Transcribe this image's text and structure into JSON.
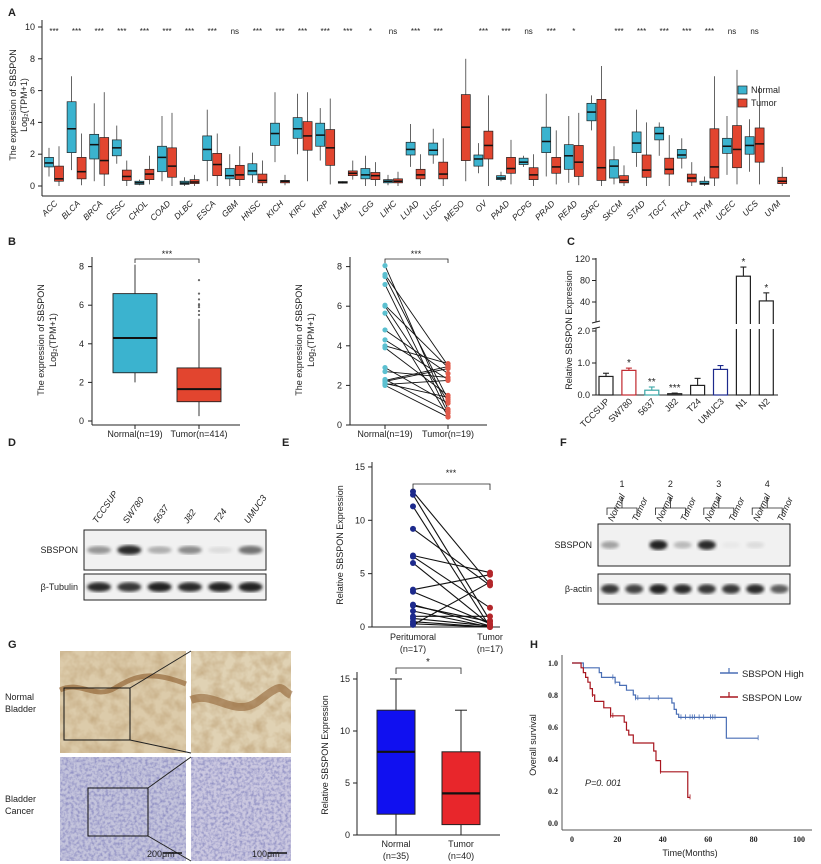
{
  "panel_labels": [
    "A",
    "B",
    "C",
    "D",
    "E",
    "F",
    "G",
    "H"
  ],
  "colors": {
    "normal": "#3bb3cf",
    "tumor": "#e2452f",
    "navy": "#1d2a8c",
    "dark_red": "#b3262a",
    "km_high": "#4a6fb5",
    "km_low": "#a8161f",
    "g_normal": "#1010f0",
    "g_tumor": "#e8262b",
    "cell_teal": "#3aa6a6"
  },
  "chart_data": [
    {
      "panel": "A",
      "type": "box",
      "ylabel": [
        "The expression of SBSPON",
        "Log₂(TPM+1)"
      ],
      "ylim": [
        0,
        10
      ],
      "yticks": [
        "0",
        "2",
        "4",
        "6",
        "8",
        "10"
      ],
      "legend": {
        "position": "right",
        "items": [
          "Normal",
          "Tumor"
        ]
      },
      "categories": [
        "ACC",
        "BLCA",
        "BRCA",
        "CESC",
        "CHOL",
        "COAD",
        "DLBC",
        "ESCA",
        "GBM",
        "HNSC",
        "KICH",
        "KIRC",
        "KIRP",
        "LAML",
        "LGG",
        "LIHC",
        "LUAD",
        "LUSC",
        "MESO",
        "OV",
        "PAAD",
        "PCPG",
        "PRAD",
        "READ",
        "SARC",
        "SKCM",
        "STAD",
        "TGCT",
        "THCA",
        "THYM",
        "UCEC",
        "UCS",
        "UVM"
      ],
      "significance": [
        "***",
        "***",
        "***",
        "***",
        "***",
        "***",
        "***",
        "***",
        "ns",
        "***",
        "***",
        "***",
        "***",
        "***",
        "*",
        "ns",
        "***",
        "***",
        "",
        "***",
        "***",
        "ns",
        "***",
        "*",
        "",
        "***",
        "***",
        "***",
        "***",
        "***",
        "ns",
        "ns",
        ""
      ],
      "box_format": [
        "whisker_low",
        "q1",
        "median",
        "q3",
        "whisker_high"
      ],
      "normal": [
        [
          0.6,
          1.2,
          1.45,
          1.8,
          2.4
        ],
        [
          1.0,
          2.1,
          3.6,
          5.3,
          6.9
        ],
        [
          0.3,
          1.7,
          2.6,
          3.25,
          5.2
        ],
        [
          1.4,
          1.9,
          2.4,
          2.9,
          3.8
        ],
        [
          0.05,
          0.1,
          0.2,
          0.3,
          0.4
        ],
        [
          0.3,
          0.9,
          1.8,
          2.5,
          4.4
        ],
        [
          0,
          0.1,
          0.18,
          0.3,
          0.55
        ],
        [
          0.3,
          1.6,
          2.3,
          3.15,
          4.8
        ],
        [
          0,
          0.45,
          0.65,
          1.1,
          2.0
        ],
        [
          0.2,
          0.7,
          0.95,
          1.4,
          2.1
        ],
        [
          1.5,
          2.55,
          3.3,
          3.95,
          5.9
        ],
        [
          2.0,
          3.0,
          3.6,
          4.3,
          5.8
        ],
        [
          1.6,
          2.5,
          3.2,
          3.95,
          4.9
        ],
        [
          0.15,
          0.18,
          0.22,
          0.28,
          0.3
        ],
        [
          0,
          0.45,
          0.7,
          1.1,
          1.9
        ],
        [
          0.05,
          0.2,
          0.3,
          0.4,
          0.7
        ],
        [
          1.2,
          1.95,
          2.3,
          2.75,
          3.9
        ],
        [
          1.4,
          1.95,
          2.25,
          2.7,
          3.6
        ],
        null,
        [
          0.8,
          1.25,
          1.7,
          1.95,
          2.7
        ],
        [
          0.3,
          0.4,
          0.5,
          0.65,
          0.9
        ],
        [
          1.2,
          1.35,
          1.5,
          1.75,
          1.9
        ],
        [
          0.6,
          2.1,
          2.8,
          3.7,
          5.8
        ],
        [
          0.2,
          1.05,
          1.9,
          2.6,
          4.4
        ],
        [
          3.5,
          4.1,
          4.65,
          5.2,
          5.7
        ],
        [
          0.1,
          0.5,
          1.25,
          1.65,
          2.5
        ],
        [
          1.2,
          2.1,
          2.7,
          3.4,
          4.8
        ],
        [
          1.9,
          2.9,
          3.3,
          3.7,
          4.0
        ],
        [
          1.1,
          1.75,
          1.95,
          2.3,
          3.0
        ],
        [
          0,
          0.1,
          0.15,
          0.3,
          0.6
        ],
        [
          0.7,
          2.05,
          2.5,
          3.0,
          4.4
        ],
        [
          0.9,
          2.0,
          2.55,
          3.1,
          4.2
        ],
        null
      ],
      "tumor": [
        [
          0,
          0.3,
          0.45,
          1.25,
          2.5
        ],
        [
          0.05,
          0.45,
          0.9,
          1.8,
          3.3
        ],
        [
          0,
          0.75,
          1.6,
          3.05,
          5.9
        ],
        [
          0,
          0.35,
          0.6,
          1.0,
          1.6
        ],
        [
          0.1,
          0.4,
          0.75,
          1.05,
          1.9
        ],
        [
          0,
          0.55,
          1.25,
          2.4,
          4.6
        ],
        [
          0,
          0.15,
          0.25,
          0.4,
          0.7
        ],
        [
          0,
          0.65,
          1.35,
          2.05,
          3.3
        ],
        [
          0,
          0.4,
          0.7,
          1.3,
          2.5
        ],
        [
          0,
          0.2,
          0.35,
          0.75,
          1.6
        ],
        [
          0.05,
          0.2,
          0.3,
          0.35,
          0.7
        ],
        [
          0.3,
          2.25,
          3.15,
          4.05,
          5.9
        ],
        [
          0.1,
          1.3,
          2.4,
          3.55,
          5.5
        ],
        [
          0.4,
          0.65,
          0.8,
          0.95,
          1.6
        ],
        [
          0,
          0.4,
          0.65,
          0.85,
          1.5
        ],
        [
          0,
          0.2,
          0.3,
          0.45,
          0.9
        ],
        [
          0,
          0.45,
          0.7,
          1.05,
          2.0
        ],
        [
          0,
          0.45,
          0.75,
          1.5,
          3.0
        ],
        [
          0.3,
          1.6,
          3.7,
          5.75,
          8.0
        ],
        [
          0,
          1.7,
          2.55,
          3.45,
          5.7
        ],
        [
          0.1,
          0.8,
          1.1,
          1.8,
          2.9
        ],
        [
          0,
          0.4,
          0.7,
          1.15,
          2.0
        ],
        [
          0.1,
          0.8,
          1.2,
          1.8,
          3.5
        ],
        [
          0.05,
          0.6,
          1.5,
          2.55,
          4.6
        ],
        [
          0,
          0.35,
          1.15,
          5.45,
          7.55
        ],
        [
          0,
          0.2,
          0.35,
          0.65,
          1.3
        ],
        [
          0,
          0.55,
          1.0,
          1.95,
          4.0
        ],
        [
          0,
          0.75,
          1.05,
          1.75,
          3.2
        ],
        [
          0,
          0.25,
          0.5,
          0.75,
          1.5
        ],
        [
          0,
          0.5,
          1.2,
          3.6,
          6.9
        ],
        [
          0.1,
          1.15,
          2.3,
          3.8,
          7.3
        ],
        [
          0.1,
          1.5,
          2.65,
          3.65,
          6.3
        ],
        [
          0,
          0.15,
          0.3,
          0.55,
          1.2
        ]
      ]
    },
    {
      "panel": "B-left",
      "type": "box",
      "ylabel": [
        "The expression of SBSPON",
        "Log₂(TPM+1)"
      ],
      "ylim": [
        0,
        8.5
      ],
      "yticks": [
        "0",
        "2",
        "4",
        "6",
        "8"
      ],
      "categories": [
        "Normal(n=19)",
        "Tumor(n=414)"
      ],
      "significance": "***",
      "boxes": [
        [
          2.0,
          2.5,
          4.3,
          6.6,
          8.1
        ],
        [
          0.25,
          1.0,
          1.65,
          2.75,
          5.3
        ]
      ],
      "tumor_outliers": [
        5.5,
        5.7,
        5.9,
        6.0,
        6.05,
        6.3,
        6.6,
        7.3
      ]
    },
    {
      "panel": "B-right",
      "type": "paired-scatter",
      "ylabel": [
        "The expression of SBSPON",
        "Log₂(TPM+1)"
      ],
      "ylim": [
        0,
        8.5
      ],
      "yticks": [
        "0",
        "2",
        "4",
        "6",
        "8"
      ],
      "categories": [
        "Normal(n=19)",
        "Tumor(n=19)"
      ],
      "significance": "***",
      "normal": [
        8.05,
        7.6,
        7.5,
        7.1,
        6.05,
        6.0,
        5.65,
        4.8,
        4.3,
        4.0,
        3.9,
        2.9,
        2.7,
        2.3,
        2.25,
        2.2,
        2.1,
        2.05,
        2.0
      ],
      "tumor": [
        0.8,
        3.0,
        1.3,
        0.6,
        2.9,
        1.2,
        0.45,
        2.6,
        2.3,
        3.1,
        1.5,
        1.1,
        2.4,
        0.7,
        2.95,
        2.85,
        1.4,
        2.25,
        0.4
      ]
    },
    {
      "panel": "C",
      "type": "bar",
      "ylabel": "Relative SBSPON Expression",
      "axis_break": [
        2,
        40
      ],
      "yticks_lower": [
        "0.0",
        "1.0",
        "2.0"
      ],
      "yticks_upper": [
        "40",
        "80",
        "120"
      ],
      "categories": [
        "TCCSUP",
        "SW780",
        "5637",
        "J82",
        "T24",
        "UMUC3",
        "N1",
        "N2"
      ],
      "values": [
        0.58,
        0.77,
        0.15,
        0.04,
        0.3,
        0.8,
        88,
        42
      ],
      "errors": [
        0.1,
        0.07,
        0.1,
        0.02,
        0.22,
        0.12,
        17,
        15
      ],
      "significance": [
        "",
        "*",
        "**",
        "***",
        "",
        "",
        "*",
        "*"
      ],
      "bar_colors": [
        "#222222",
        "#c0272d",
        "#3aa6a6",
        "#222222",
        "#222222",
        "#1d2a8c",
        "#222222",
        "#222222"
      ]
    },
    {
      "panel": "E",
      "type": "paired-scatter",
      "ylabel": "Relative SBSPON Expression",
      "ylim": [
        0,
        15
      ],
      "yticks": [
        "0",
        "5",
        "10",
        "15"
      ],
      "categories": [
        [
          "Peritumoral",
          "(n=17)"
        ],
        [
          "Tumor",
          "(n=17)"
        ]
      ],
      "significance": "***",
      "normal": [
        12.7,
        12.4,
        11.3,
        9.2,
        6.7,
        6.6,
        6.0,
        3.5,
        3.3,
        2.1,
        2.0,
        1.5,
        1.0,
        0.8,
        0.5,
        0.3,
        0.2
      ],
      "tumor": [
        4.0,
        0.6,
        0.0,
        3.9,
        5.1,
        1.8,
        0.2,
        4.9,
        0.3,
        0.1,
        0.5,
        0.0,
        1.0,
        0.1,
        0.0,
        0.0,
        4.2
      ]
    },
    {
      "panel": "G",
      "type": "box",
      "ylabel": "Relative SBSPON Expression",
      "ylim": [
        0,
        15
      ],
      "yticks": [
        "0",
        "5",
        "10",
        "15"
      ],
      "categories": [
        [
          "Normal",
          "(n=35)"
        ],
        [
          "Tumor",
          "(n=40)"
        ]
      ],
      "significance": "*",
      "boxes": [
        [
          0,
          2,
          8,
          12,
          15
        ],
        [
          0,
          1,
          4,
          8,
          12
        ]
      ]
    },
    {
      "panel": "H",
      "type": "line",
      "subtype": "kaplan-meier",
      "xlabel": "Time(Months)",
      "ylabel": "Overall survival",
      "xlim": [
        0,
        100
      ],
      "ylim": [
        0,
        1
      ],
      "xticks": [
        "0",
        "20",
        "40",
        "60",
        "80",
        "100"
      ],
      "yticks": [
        "0.0",
        "0.2",
        "0.4",
        "0.6",
        "0.8",
        "1.0"
      ],
      "annotation": "P=0. 001",
      "legend": {
        "position": "top-right"
      },
      "series": [
        {
          "name": "SBSPON High",
          "steps": [
            [
              0,
              1
            ],
            [
              5,
              0.97
            ],
            [
              12,
              0.94
            ],
            [
              13,
              0.91
            ],
            [
              19,
              0.88
            ],
            [
              21,
              0.86
            ],
            [
              24,
              0.83
            ],
            [
              27,
              0.8
            ],
            [
              28,
              0.78
            ],
            [
              44,
              0.75
            ],
            [
              45,
              0.71
            ],
            [
              46,
              0.68
            ],
            [
              47,
              0.66
            ],
            [
              68,
              0.53
            ],
            [
              82,
              0.53
            ]
          ],
          "censored": [
            18,
            19,
            28,
            29,
            34,
            38,
            48,
            50,
            52,
            53,
            54,
            56,
            58,
            61,
            62,
            63,
            82
          ]
        },
        {
          "name": "SBSPON Low",
          "steps": [
            [
              0,
              1
            ],
            [
              4,
              0.97
            ],
            [
              5,
              0.94
            ],
            [
              6,
              0.91
            ],
            [
              7,
              0.88
            ],
            [
              8,
              0.84
            ],
            [
              9,
              0.8
            ],
            [
              10,
              0.76
            ],
            [
              14,
              0.72
            ],
            [
              17,
              0.67
            ],
            [
              23,
              0.63
            ],
            [
              24,
              0.58
            ],
            [
              25,
              0.55
            ],
            [
              27,
              0.5
            ],
            [
              36,
              0.45
            ],
            [
              37,
              0.39
            ],
            [
              39,
              0.32
            ],
            [
              51,
              0.16
            ],
            [
              52,
              0.16
            ]
          ],
          "censored": [
            9,
            17,
            18,
            39,
            52
          ]
        }
      ]
    }
  ],
  "blot_d": {
    "lanes": [
      "TCCSUP",
      "SW780",
      "5637",
      "J82",
      "T24",
      "UMUC3"
    ],
    "rows": [
      {
        "label": "SBSPON",
        "intensity": [
          0.45,
          0.9,
          0.35,
          0.5,
          0.15,
          0.6
        ]
      },
      {
        "label": "β-Tubulin",
        "intensity": [
          0.9,
          0.85,
          0.95,
          0.9,
          0.95,
          0.95
        ]
      }
    ]
  },
  "blot_f": {
    "groups": [
      "1",
      "2",
      "3",
      "4"
    ],
    "lanes": [
      "Normal",
      "Tumor",
      "Normal",
      "Tumor",
      "Normal",
      "Tumor",
      "Normal",
      "Tumor"
    ],
    "rows": [
      {
        "label": "SBSPON",
        "intensity": [
          0.4,
          0.0,
          0.95,
          0.3,
          0.9,
          0.1,
          0.15,
          0.0
        ]
      },
      {
        "label": "β-actin",
        "intensity": [
          0.85,
          0.8,
          0.95,
          0.9,
          0.85,
          0.85,
          0.9,
          0.7
        ]
      }
    ]
  },
  "histology_g": {
    "row_labels": [
      [
        "Normal",
        "Bladder"
      ],
      [
        "Bladder",
        "Cancer"
      ]
    ],
    "scale_bars": [
      "200μm",
      "100μm"
    ]
  }
}
